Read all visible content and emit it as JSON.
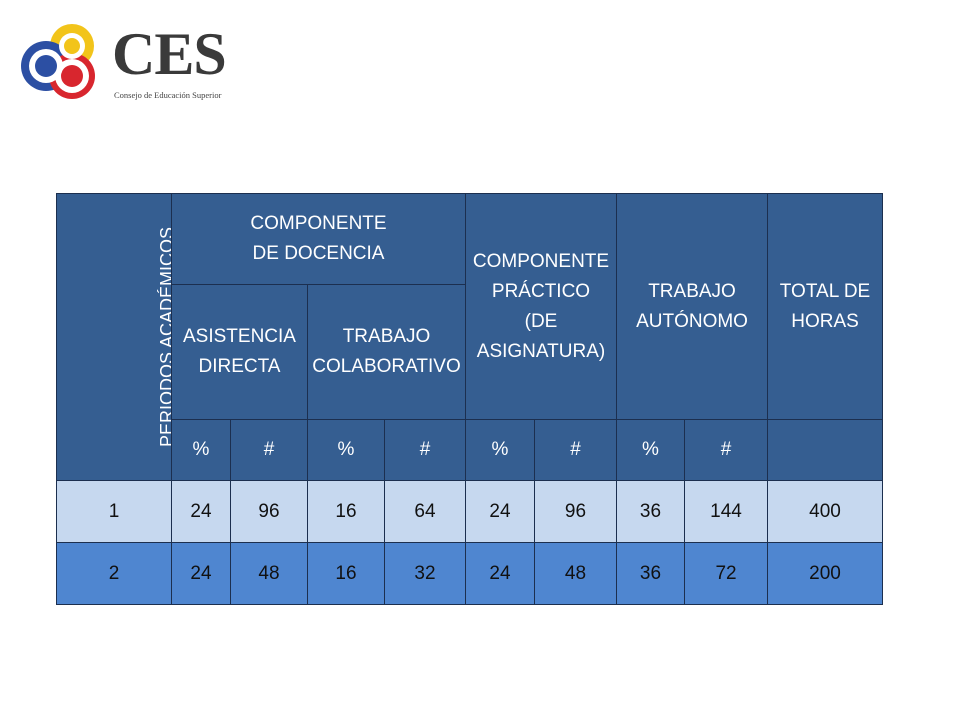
{
  "logo": {
    "text": "CES",
    "subtitle": "Consejo de Educación Superior"
  },
  "table": {
    "header_periods": "PERIODOS ACADÉMICOS",
    "header_docencia": [
      "COMPONENTE",
      "DE DOCENCIA"
    ],
    "header_practico": [
      "COMPONENTE",
      "PRÁCTICO",
      "(DE",
      "ASIGNATURA)"
    ],
    "header_autonomo": [
      "TRABAJO",
      "AUTÓNOMO"
    ],
    "header_total": [
      "TOTAL DE",
      "HORAS"
    ],
    "header_asistencia": [
      "ASISTENCIA",
      "DIRECTA"
    ],
    "header_colaborativo": [
      "TRABAJO",
      "COLABORATIVO"
    ],
    "unit_headers": [
      "%",
      "#",
      "%",
      "#",
      "%",
      "#",
      "%",
      "#",
      ""
    ],
    "rows": [
      [
        "1",
        "24",
        "96",
        "16",
        "64",
        "24",
        "96",
        "36",
        "144",
        "400"
      ],
      [
        "2",
        "24",
        "48",
        "16",
        "32",
        "24",
        "48",
        "36",
        "72",
        "200"
      ]
    ]
  },
  "colors": {
    "header_bg": "#355e91",
    "row1_bg": "#c6d8ef",
    "row2_bg": "#4f86d0",
    "logo_yellow": "#f2c41a",
    "logo_blue": "#2c4fa3",
    "logo_red": "#d8262e"
  }
}
